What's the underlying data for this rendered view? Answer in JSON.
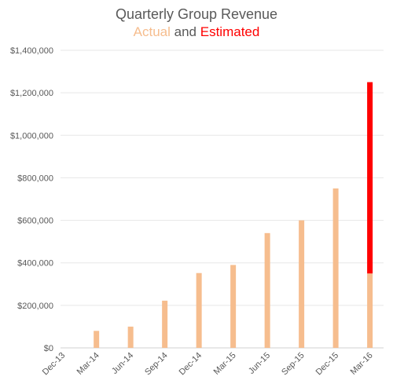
{
  "chart_data": {
    "type": "bar",
    "title": "Quarterly Group Revenue",
    "subtitle": {
      "actual_label": "Actual",
      "and_label": "and",
      "estimated_label": "Estimated"
    },
    "categories": [
      "Dec-13",
      "Mar-14",
      "Jun-14",
      "Sep-14",
      "Dec-14",
      "Mar-15",
      "Jun-15",
      "Sep-15",
      "Dec-15",
      "Mar-16"
    ],
    "series": [
      {
        "name": "Actual",
        "color": "#f6bd8e",
        "values": [
          0,
          80000,
          100000,
          222000,
          352000,
          390000,
          540000,
          600000,
          750000,
          350000
        ]
      },
      {
        "name": "Estimated",
        "color": "#ff0000",
        "values": [
          0,
          0,
          0,
          0,
          0,
          0,
          0,
          0,
          0,
          900000
        ]
      }
    ],
    "stacked": true,
    "ylim": [
      0,
      1400000
    ],
    "yticks": [
      0,
      200000,
      400000,
      600000,
      800000,
      1000000,
      1200000,
      1400000
    ],
    "ytick_labels": [
      "$0",
      "$200,000",
      "$400,000",
      "$600,000",
      "$800,000",
      "$1,000,000",
      "$1,200,000",
      "$1,400,000"
    ],
    "grid": true,
    "legend": "subtitle"
  }
}
